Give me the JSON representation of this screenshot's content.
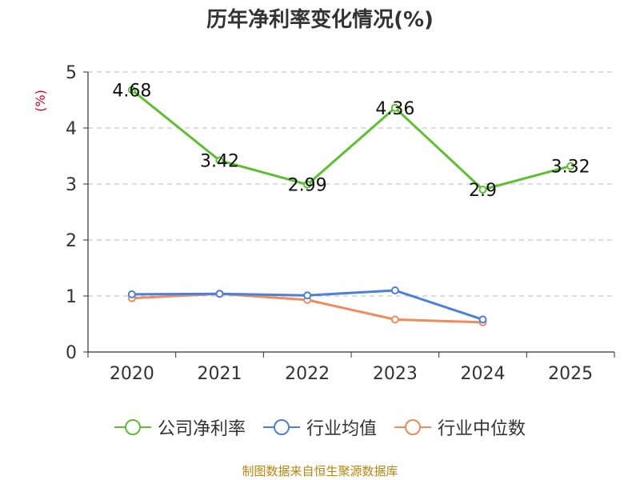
{
  "chart_data": {
    "type": "line",
    "title": "历年净利率变化情况(%)",
    "ylabel": "(%)",
    "xlabel": "",
    "categories": [
      "2020",
      "2021",
      "2022",
      "2023",
      "2024",
      "2025"
    ],
    "ylim": [
      0,
      5
    ],
    "yticks": [
      0,
      1,
      2,
      3,
      4,
      5
    ],
    "grid": true,
    "legend_position": "bottom",
    "series": [
      {
        "name": "公司净利率",
        "color": "#5cc12f",
        "values": [
          4.68,
          3.42,
          2.99,
          4.36,
          2.9,
          3.32
        ],
        "labels": [
          "4.68",
          "3.42",
          "2.99",
          "4.36",
          "2.9",
          "3.32"
        ]
      },
      {
        "name": "行业均值",
        "color": "#4b7fe0",
        "values": [
          1.03,
          1.04,
          1.01,
          1.1,
          0.58,
          null
        ]
      },
      {
        "name": "行业中位数",
        "color": "#f08c5a",
        "values": [
          0.96,
          1.04,
          0.93,
          0.58,
          0.53,
          null
        ]
      }
    ]
  },
  "footer": {
    "source": "制图数据来自恒生聚源数据库"
  }
}
